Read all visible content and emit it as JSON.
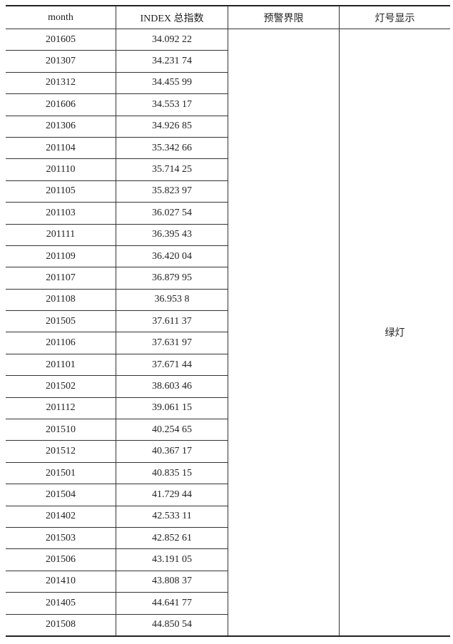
{
  "table": {
    "headers": [
      "month",
      "INDEX 总指数",
      "预警界限",
      "灯号显示"
    ],
    "warning_limit": "",
    "light_signal": "绿灯",
    "rows": [
      [
        "201605",
        "34.092 22"
      ],
      [
        "201307",
        "34.231 74"
      ],
      [
        "201312",
        "34.455 99"
      ],
      [
        "201606",
        "34.553 17"
      ],
      [
        "201306",
        "34.926 85"
      ],
      [
        "201104",
        "35.342 66"
      ],
      [
        "201110",
        "35.714 25"
      ],
      [
        "201105",
        "35.823 97"
      ],
      [
        "201103",
        "36.027 54"
      ],
      [
        "201111",
        "36.395 43"
      ],
      [
        "201109",
        "36.420 04"
      ],
      [
        "201107",
        "36.879 95"
      ],
      [
        "201108",
        "36.953 8"
      ],
      [
        "201505",
        "37.611 37"
      ],
      [
        "201106",
        "37.631 97"
      ],
      [
        "201101",
        "37.671 44"
      ],
      [
        "201502",
        "38.603 46"
      ],
      [
        "201112",
        "39.061 15"
      ],
      [
        "201510",
        "40.254 65"
      ],
      [
        "201512",
        "40.367 17"
      ],
      [
        "201501",
        "40.835 15"
      ],
      [
        "201504",
        "41.729 44"
      ],
      [
        "201402",
        "42.533 11"
      ],
      [
        "201503",
        "42.852 61"
      ],
      [
        "201506",
        "43.191 05"
      ],
      [
        "201410",
        "43.808 37"
      ],
      [
        "201405",
        "44.641 77"
      ],
      [
        "201508",
        "44.850 54"
      ]
    ]
  }
}
